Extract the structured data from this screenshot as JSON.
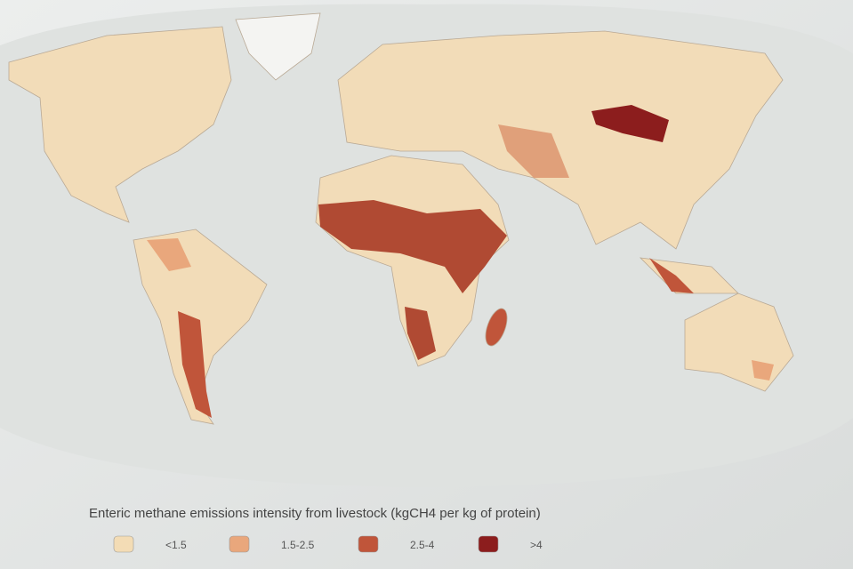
{
  "legend": {
    "title": "Enteric methane emissions intensity from livestock (kgCH4 per kg of protein)",
    "items": [
      {
        "label": "<1.5",
        "color": "#f3dcb5"
      },
      {
        "label": "1.5-2.5",
        "color": "#e9a77c"
      },
      {
        "label": "2.5-4",
        "color": "#c0553a"
      },
      {
        "label": ">4",
        "color": "#8c1d1d"
      }
    ]
  }
}
